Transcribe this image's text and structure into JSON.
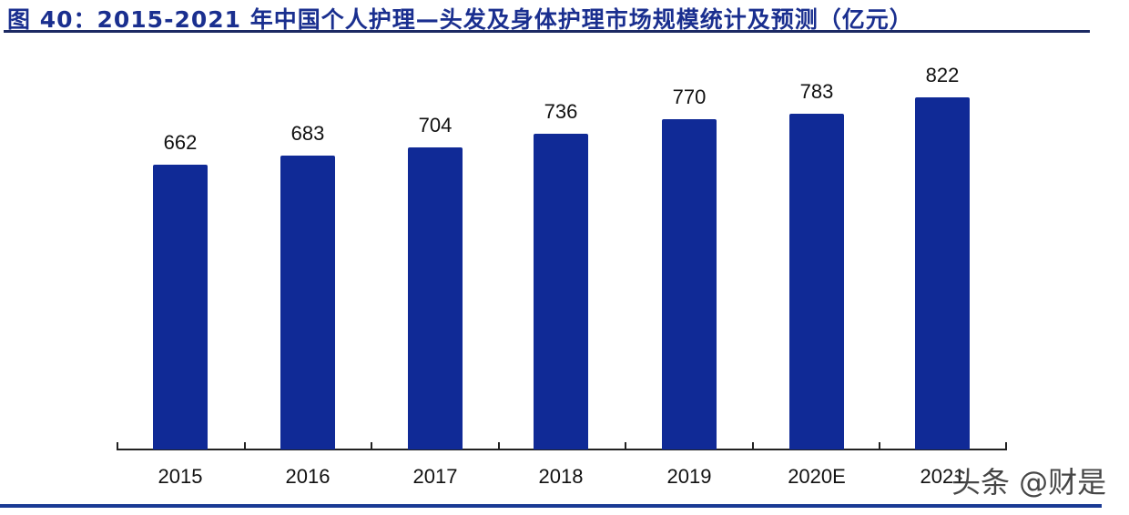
{
  "title": "图 40：2015-2021 年中国个人护理—头发及身体护理市场规模统计及预测（亿元）",
  "watermark": "头条 @财是",
  "colors": {
    "bar": "#102a96",
    "title": "#1a2f8f",
    "rule": "#1c2a63"
  },
  "chart_data": {
    "type": "bar",
    "title": "2015-2021年中国个人护理—头发及身体护理市场规模统计及预测（亿元）",
    "xlabel": "",
    "ylabel": "亿元",
    "categories": [
      "2015",
      "2016",
      "2017",
      "2018",
      "2019",
      "2020E",
      "2021E"
    ],
    "values": [
      662,
      683,
      704,
      736,
      770,
      783,
      822
    ],
    "value_labels": [
      "662",
      "683",
      "704",
      "736",
      "770",
      "783",
      "822"
    ],
    "grid": false,
    "legend": null
  },
  "x_labels": [
    "2015",
    "2016",
    "2017",
    "2018",
    "2019",
    "2020E",
    "2021"
  ]
}
